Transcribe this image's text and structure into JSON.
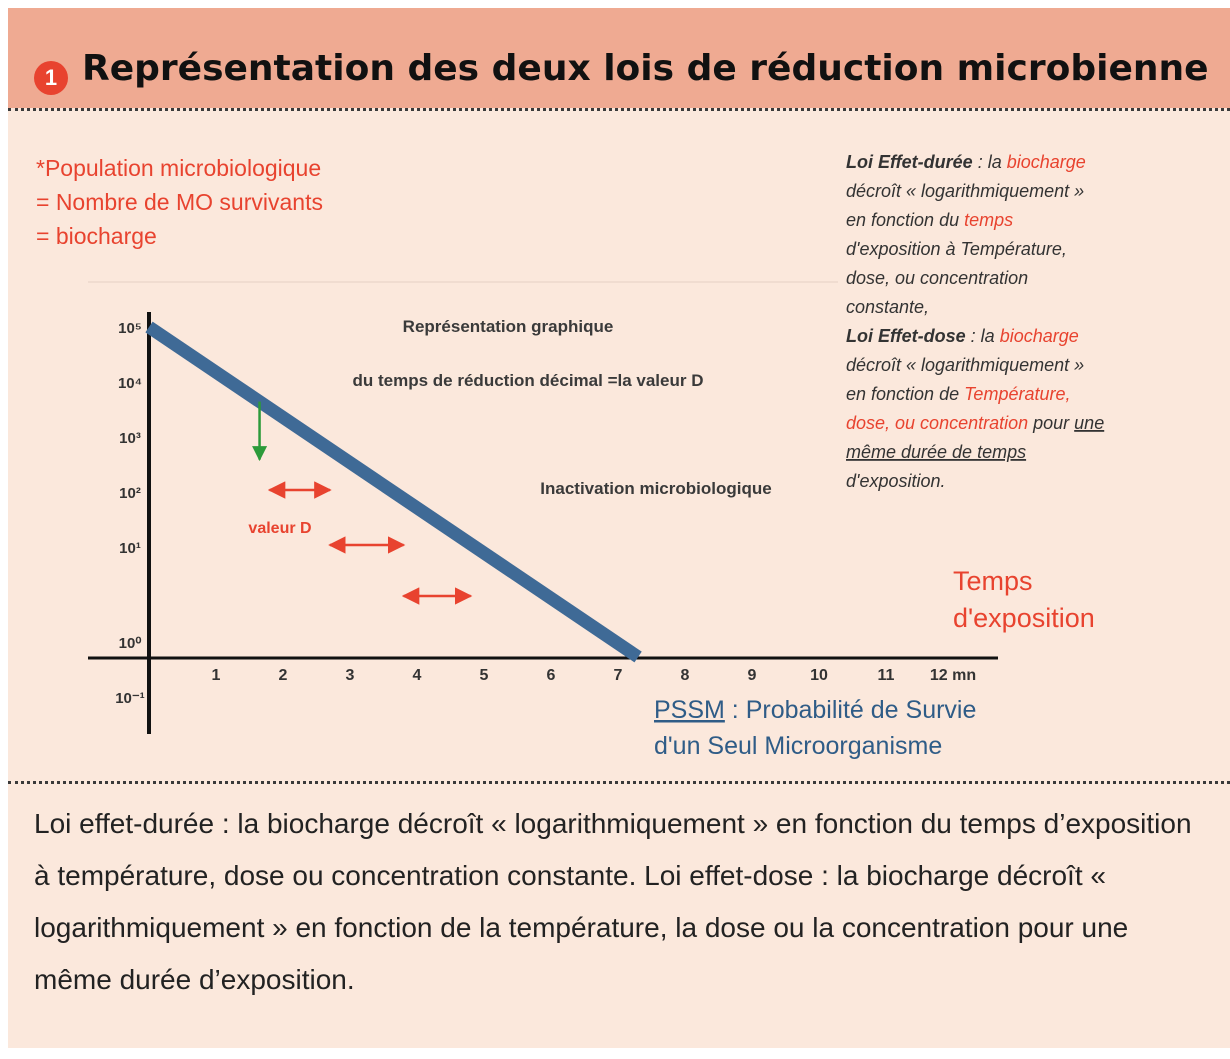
{
  "figure": {
    "number": "1",
    "title": "Représentation des deux lois de réduction microbienne"
  },
  "colors": {
    "header_bg": "#efaa92",
    "card_bg": "#fbe8dc",
    "red_text": "#e8432f",
    "line": "#3f6a96",
    "arrow": "#e8432f",
    "green_step": "#2c9a3a"
  },
  "chart_data": {
    "type": "line",
    "x": [
      0,
      6.2,
      7.3
    ],
    "y": [
      100000.0,
      1,
      0.1
    ],
    "x_ticks": [
      "1",
      "2",
      "3",
      "4",
      "5",
      "6",
      "7",
      "8",
      "9",
      "10",
      "11",
      "12 mn"
    ],
    "y_ticks": [
      "10⁵",
      "10⁴",
      "10³",
      "10²",
      "10¹",
      "10⁰",
      "10⁻¹"
    ],
    "y_scale": "log",
    "xlim": [
      0,
      12
    ],
    "ylim": [
      "10⁻¹",
      "10⁵"
    ],
    "ylabel": [
      "*Population microbiologique",
      "= Nombre de MO survivants",
      "= biocharge"
    ],
    "xlabel": [
      "Temps",
      "d'exposition"
    ],
    "annotations": {
      "center": [
        "Représentation graphique",
        "du temps de réduction décimal =la valeur D"
      ],
      "inactivation": "Inactivation microbiologique",
      "d_value": "valeur D",
      "pssm_abbrev": "PSSM",
      "pssm_rest": " : Probabilité de Survie",
      "pssm_line2": "d'un Seul Microorganisme"
    },
    "d_value_arrows": [
      [
        1.8,
        2.7
      ],
      [
        2.7,
        3.8
      ],
      [
        3.8,
        4.8
      ]
    ],
    "side_note": [
      [
        {
          "t": "Loi Effet-durée",
          "s": "i"
        },
        {
          "t": " : la "
        },
        {
          "t": "biocharge",
          "s": "r"
        }
      ],
      [
        {
          "t": "décroît « logarithmiquement »"
        }
      ],
      [
        {
          "t": "en fonction du "
        },
        {
          "t": "temps",
          "s": "r"
        }
      ],
      [
        {
          "t": "d'exposition à Température,"
        }
      ],
      [
        {
          "t": "dose, ou concentration"
        }
      ],
      [
        {
          "t": "constante,"
        }
      ],
      [
        {
          "t": "Loi Effet-dose",
          "s": "i"
        },
        {
          "t": " : la "
        },
        {
          "t": "biocharge",
          "s": "r"
        }
      ],
      [
        {
          "t": "décroît « logarithmiquement »"
        }
      ],
      [
        {
          "t": "en fonction de "
        },
        {
          "t": "Température,",
          "s": "r"
        }
      ],
      [
        {
          "t": "dose, ou concentration",
          "s": "r"
        },
        {
          "t": " pour "
        },
        {
          "t": "une",
          "s": "u"
        }
      ],
      [
        {
          "t": "même durée de temps",
          "s": "u"
        }
      ],
      [
        {
          "t": "d'exposition."
        }
      ]
    ]
  },
  "caption": "Loi effet-durée : la biocharge décroît « logarithmiquement » en fonction du temps d’exposition à température, dose ou concentration constante. Loi effet-dose : la biocharge décroît « logarithmiquement » en fonction de la température, la dose ou la concentration pour une même durée d’exposition."
}
